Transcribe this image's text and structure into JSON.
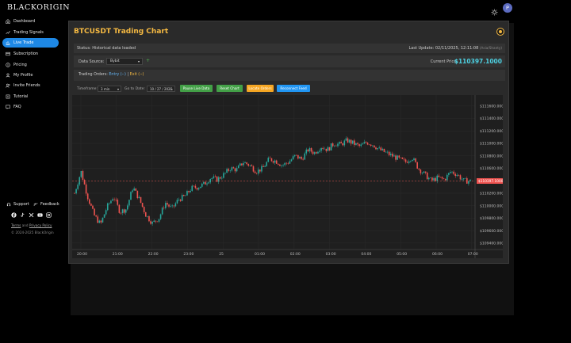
{
  "brand": {
    "logo": "BLACKORIGIN"
  },
  "sidebar": {
    "items": [
      {
        "label": "Dashboard",
        "icon": "home-icon",
        "active": false
      },
      {
        "label": "Trading Signals",
        "icon": "signals-icon",
        "active": false
      },
      {
        "label": "Live Trade",
        "icon": "chart-icon",
        "active": true
      },
      {
        "label": "Subscription",
        "icon": "subscription-icon",
        "active": false
      },
      {
        "label": "Pricing",
        "icon": "pricing-icon",
        "active": false
      },
      {
        "label": "My Profile",
        "icon": "profile-icon",
        "active": false
      },
      {
        "label": "Invite Friends",
        "icon": "invite-icon",
        "active": false
      },
      {
        "label": "Tutorial",
        "icon": "tutorial-icon",
        "active": false
      },
      {
        "label": "FAQ",
        "icon": "faq-icon",
        "active": false
      }
    ],
    "support_label": "Support",
    "feedback_label": "Feedback",
    "social": [
      "facebook-icon",
      "tiktok-icon",
      "x-icon",
      "youtube-icon",
      "instagram-icon"
    ],
    "terms_label": "Terms",
    "and_label": "and",
    "privacy_label": "Privacy Policy",
    "copyright": "© 2024-2025 BlackOrigin"
  },
  "header": {
    "avatar_letter": "P",
    "theme_icon": "sun-icon"
  },
  "panel": {
    "title": "BTCUSDT Trading Chart",
    "status": "Status: Historical data loaded",
    "last_update": "Last Update: 02/11/2025, 12:11:08",
    "timezone": "(Asia/Shanty)",
    "data_source_label": "Data Source:",
    "data_source_value": "Bybit",
    "current_price_label": "Current Price:",
    "current_price": "$110397.1000",
    "orders_label": "Trading Orders:",
    "orders_entry": "Entry (--)",
    "orders_separator": "|",
    "orders_exit": "Exit (--)",
    "timeframe_label": "Timeframe:",
    "timeframe_value": "3 min",
    "goto_label": "Go to Date:",
    "goto_value": "10 / 27 / 2025",
    "buttons": {
      "pause": "Pause Live Data",
      "reset": "Reset Chart",
      "locate": "Locate Orders",
      "reconnect": "Reconnect Feed"
    }
  },
  "colors": {
    "up": "#26a69a",
    "down": "#ef5350",
    "accent": "#f5b942",
    "price": "#4dd0e1",
    "btn_pause": "#43a047",
    "btn_reset": "#43a047",
    "btn_locate": "#f5a623",
    "btn_reconnect": "#2196f3"
  },
  "chart_data": {
    "type": "candlestick",
    "price_labels": [
      "$111600.0000",
      "$111400.0000",
      "$111200.0000",
      "$111000.0000",
      "$110800.0000",
      "$110600.0000",
      "$110400.0000",
      "$110200.0000",
      "$110000.0000",
      "$109800.0000",
      "$109600.0000",
      "$109400.0000"
    ],
    "y_ticks": [
      111600,
      111400,
      111200,
      111000,
      110800,
      110600,
      110400,
      110200,
      110000,
      109800,
      109600,
      109400
    ],
    "ylim": [
      109310,
      111700
    ],
    "time_labels": [
      "20:00",
      "21:00",
      "22:00",
      "23:00",
      "25",
      "01:00",
      "02:00",
      "03:00",
      "04:00",
      "05:00",
      "06:00",
      "07:00"
    ],
    "current_price_marker": 110397.1,
    "current_price_tag": "$110397.1000",
    "close_path": [
      110200,
      110550,
      110150,
      109850,
      109700,
      109980,
      110150,
      109900,
      109950,
      110300,
      110100,
      109850,
      109720,
      109800,
      110050,
      109950,
      110100,
      110150,
      110280,
      110300,
      110350,
      110450,
      110420,
      110500,
      110600,
      110580,
      110700,
      110650,
      110550,
      110600,
      110750,
      110720,
      110650,
      110700,
      110800,
      110750,
      110900,
      110850,
      110950,
      110900,
      111000,
      110980,
      111050,
      111000,
      110950,
      111020,
      110980,
      110900,
      110850,
      110800,
      110750,
      110700,
      110780,
      110600,
      110500,
      110400,
      110450,
      110420,
      110550,
      110500,
      110400,
      110397
    ]
  }
}
